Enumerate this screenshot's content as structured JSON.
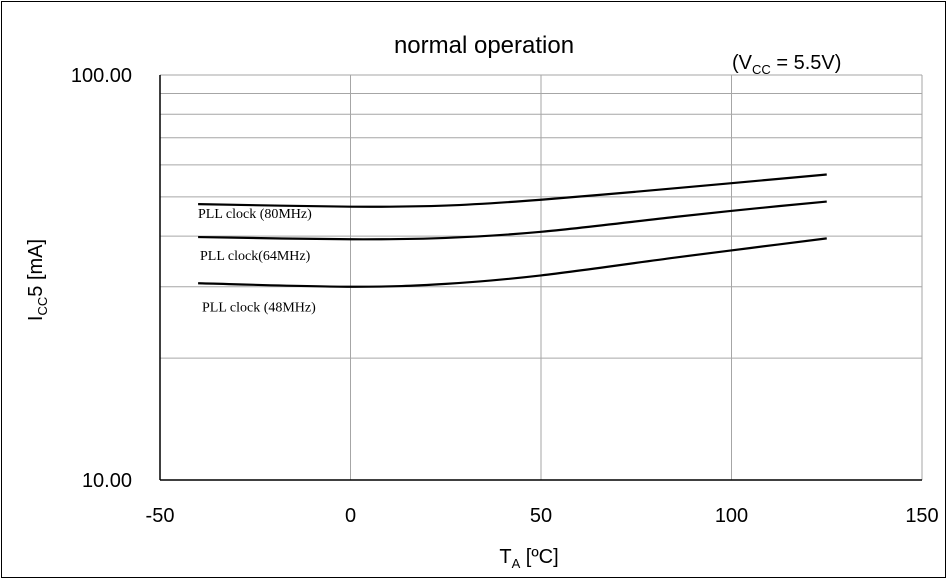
{
  "chart_data": {
    "type": "line",
    "title": "normal operation",
    "condition": {
      "text": "(V",
      "sub": "CC",
      "rest": " = 5.5V)"
    },
    "xlabel": {
      "text": "T",
      "sub": "A",
      "rest": " [ºC]"
    },
    "ylabel": {
      "text": "I",
      "sub": "CC",
      "rest": "5 [mA]"
    },
    "x_scale": "linear",
    "y_scale": "log",
    "xlim": [
      -50,
      150
    ],
    "ylim": [
      10,
      100
    ],
    "x_ticks": [
      "-50",
      "0",
      "50",
      "100",
      "150"
    ],
    "x_tick_values": [
      -50,
      0,
      50,
      100,
      150
    ],
    "y_ticks": [
      "10.00",
      "100.00"
    ],
    "y_tick_values": [
      10,
      100
    ],
    "grid": true,
    "series": [
      {
        "name": "PLL clock (80MHz)",
        "x": [
          -40,
          0,
          25,
          50,
          85,
          105,
          125
        ],
        "y": [
          48.0,
          47.3,
          47.6,
          49.2,
          52.5,
          54.6,
          56.8
        ]
      },
      {
        "name": "PLL clock(64MHz)",
        "x": [
          -40,
          0,
          25,
          50,
          85,
          105,
          125
        ],
        "y": [
          39.8,
          39.3,
          39.6,
          41.0,
          44.6,
          46.7,
          48.7
        ]
      },
      {
        "name": "PLL clock (48MHz)",
        "x": [
          -40,
          0,
          25,
          50,
          85,
          105,
          125
        ],
        "y": [
          30.6,
          30.0,
          30.5,
          32.0,
          35.4,
          37.4,
          39.5
        ]
      }
    ],
    "line_color": "#000000",
    "grid_color": "#a6a6a6"
  }
}
